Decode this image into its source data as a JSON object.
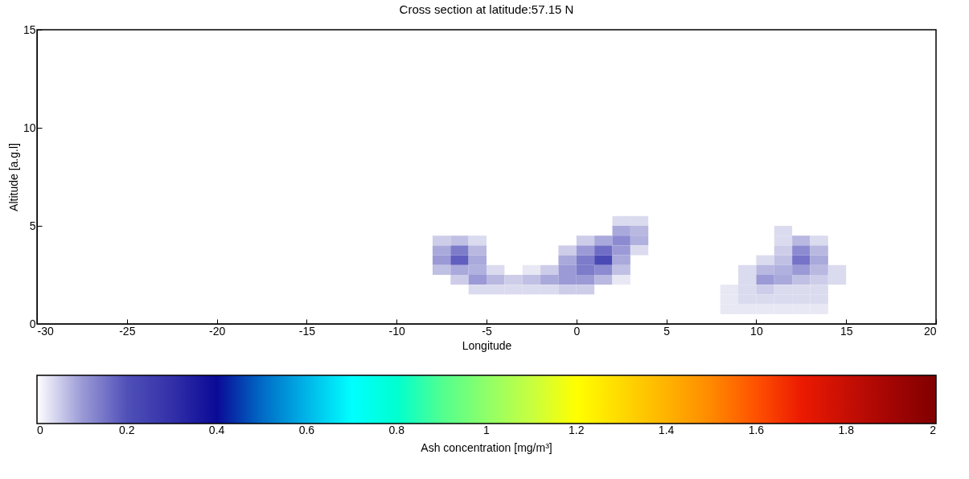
{
  "chart_data": {
    "type": "heatmap",
    "title": "Cross section at latitude:57.15 N",
    "xlabel": "Longitude",
    "ylabel": "Altitude [a.g.l]",
    "clabel": "Ash concentration [mg/m³]",
    "x": [
      -7.5,
      -6.5,
      -5.5,
      -4.5,
      -3.5,
      -2.5,
      -1.5,
      -0.5,
      0.5,
      1.5,
      2.5,
      3.5,
      4.5,
      5.5,
      6.5,
      7.5,
      8.5,
      9.5,
      10.5,
      11.5,
      12.5,
      13.5,
      14.5
    ],
    "y": [
      5.25,
      4.75,
      4.25,
      3.75,
      3.25,
      2.75,
      2.25,
      1.75,
      1.25,
      0.75
    ],
    "cells": [
      [
        null,
        null,
        null,
        null,
        null,
        null,
        null,
        null,
        null,
        null,
        0.03,
        0.03,
        null,
        null,
        null,
        null,
        null,
        null,
        null,
        null,
        null,
        null,
        null
      ],
      [
        null,
        null,
        null,
        null,
        null,
        null,
        null,
        null,
        null,
        null,
        0.08,
        0.06,
        null,
        null,
        null,
        null,
        null,
        null,
        null,
        0.03,
        null,
        null,
        null
      ],
      [
        0.04,
        0.05,
        0.03,
        null,
        null,
        null,
        null,
        null,
        0.04,
        0.08,
        0.12,
        0.07,
        null,
        null,
        null,
        null,
        null,
        null,
        null,
        0.03,
        0.06,
        0.03,
        null
      ],
      [
        0.08,
        0.14,
        0.06,
        null,
        null,
        null,
        null,
        0.04,
        0.1,
        0.16,
        0.1,
        0.03,
        null,
        null,
        null,
        null,
        null,
        null,
        null,
        0.04,
        0.12,
        0.06,
        null
      ],
      [
        0.1,
        0.18,
        0.08,
        null,
        null,
        null,
        null,
        0.08,
        0.14,
        0.22,
        0.08,
        null,
        null,
        null,
        null,
        null,
        null,
        null,
        0.03,
        0.05,
        0.15,
        0.08,
        null
      ],
      [
        0.05,
        0.08,
        0.07,
        0.03,
        null,
        0.02,
        0.04,
        0.1,
        0.14,
        0.12,
        0.05,
        null,
        null,
        null,
        null,
        null,
        null,
        0.03,
        0.06,
        0.07,
        0.1,
        0.06,
        0.03
      ],
      [
        null,
        0.04,
        0.1,
        0.06,
        0.04,
        0.05,
        0.08,
        0.1,
        0.1,
        0.06,
        0.02,
        null,
        null,
        null,
        null,
        null,
        null,
        0.03,
        0.1,
        0.08,
        0.05,
        0.04,
        0.03
      ],
      [
        null,
        null,
        0.03,
        0.03,
        0.03,
        0.03,
        0.03,
        0.04,
        0.04,
        null,
        null,
        null,
        null,
        null,
        null,
        null,
        0.02,
        0.03,
        0.04,
        0.03,
        0.03,
        0.03,
        null
      ],
      [
        null,
        null,
        null,
        null,
        null,
        null,
        null,
        null,
        null,
        null,
        null,
        null,
        null,
        null,
        null,
        null,
        0.02,
        0.03,
        0.03,
        0.03,
        0.03,
        0.03,
        null
      ],
      [
        null,
        null,
        null,
        null,
        null,
        null,
        null,
        null,
        null,
        null,
        null,
        null,
        null,
        null,
        null,
        null,
        0.02,
        0.02,
        0.02,
        0.02,
        0.02,
        0.02,
        null
      ]
    ],
    "xlim": [
      -30,
      20
    ],
    "xticks": [
      -30,
      -25,
      -20,
      -15,
      -10,
      -5,
      0,
      5,
      10,
      15,
      20
    ],
    "ylim": [
      0,
      15
    ],
    "yticks": [
      0,
      5,
      10,
      15
    ],
    "clim": [
      0,
      2
    ],
    "cticks": [
      0,
      0.2,
      0.4,
      0.6,
      0.8,
      1,
      1.2,
      1.4,
      1.6,
      1.8,
      2
    ]
  }
}
